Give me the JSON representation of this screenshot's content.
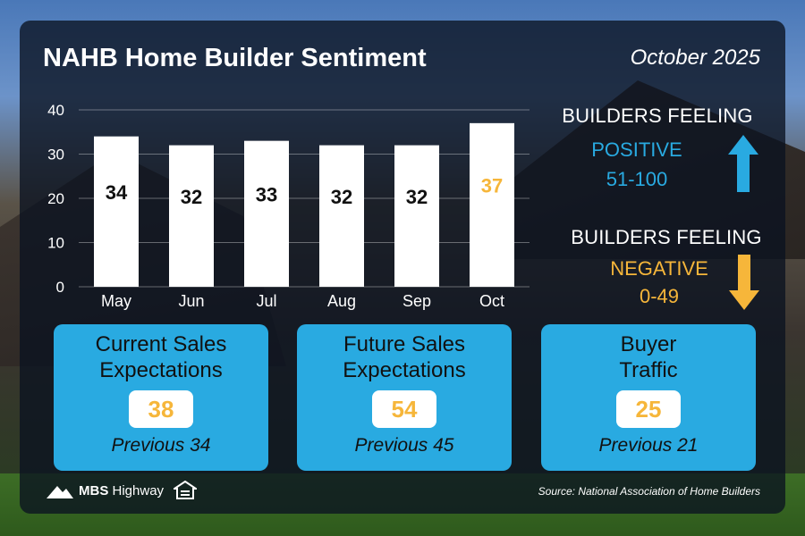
{
  "header": {
    "title": "NAHB Home Builder Sentiment",
    "date": "October 2025"
  },
  "chart_data": {
    "type": "bar",
    "categories": [
      "May",
      "Jun",
      "Jul",
      "Aug",
      "Sep",
      "Oct"
    ],
    "values": [
      34,
      32,
      33,
      32,
      32,
      37
    ],
    "data_labels": [
      "34",
      "32",
      "33",
      "32",
      "32",
      "37"
    ],
    "highlight_color": "#f6b63a",
    "bar_color": "#ffffff",
    "yticks": [
      0,
      10,
      20,
      30,
      40
    ],
    "ylim": [
      0,
      40
    ],
    "grid": true
  },
  "legend": {
    "positive_line1": "BUILDERS FEELING",
    "positive_word": "POSITIVE",
    "positive_range": "51-100",
    "negative_line1": "BUILDERS FEELING",
    "negative_word": "NEGATIVE",
    "negative_range": "0-49",
    "positive_color": "#29aae1",
    "negative_color": "#f6b63a",
    "positive_icon": "arrow-up-icon",
    "negative_icon": "arrow-down-icon"
  },
  "cards": [
    {
      "title_line1": "Current Sales",
      "title_line2": "Expectations",
      "value": "38",
      "previous": "Previous 34"
    },
    {
      "title_line1": "Future Sales",
      "title_line2": "Expectations",
      "value": "54",
      "previous": "Previous 45"
    },
    {
      "title_line1": "Buyer",
      "title_line2": "Traffic",
      "value": "25",
      "previous": "Previous 21"
    }
  ],
  "footer": {
    "logo_text_bold": "MBS",
    "logo_text": "Highway",
    "logo_icon": "mountain-logo-icon",
    "eho_icon": "equal-housing-icon",
    "source": "Source: National Association of Home Builders"
  }
}
